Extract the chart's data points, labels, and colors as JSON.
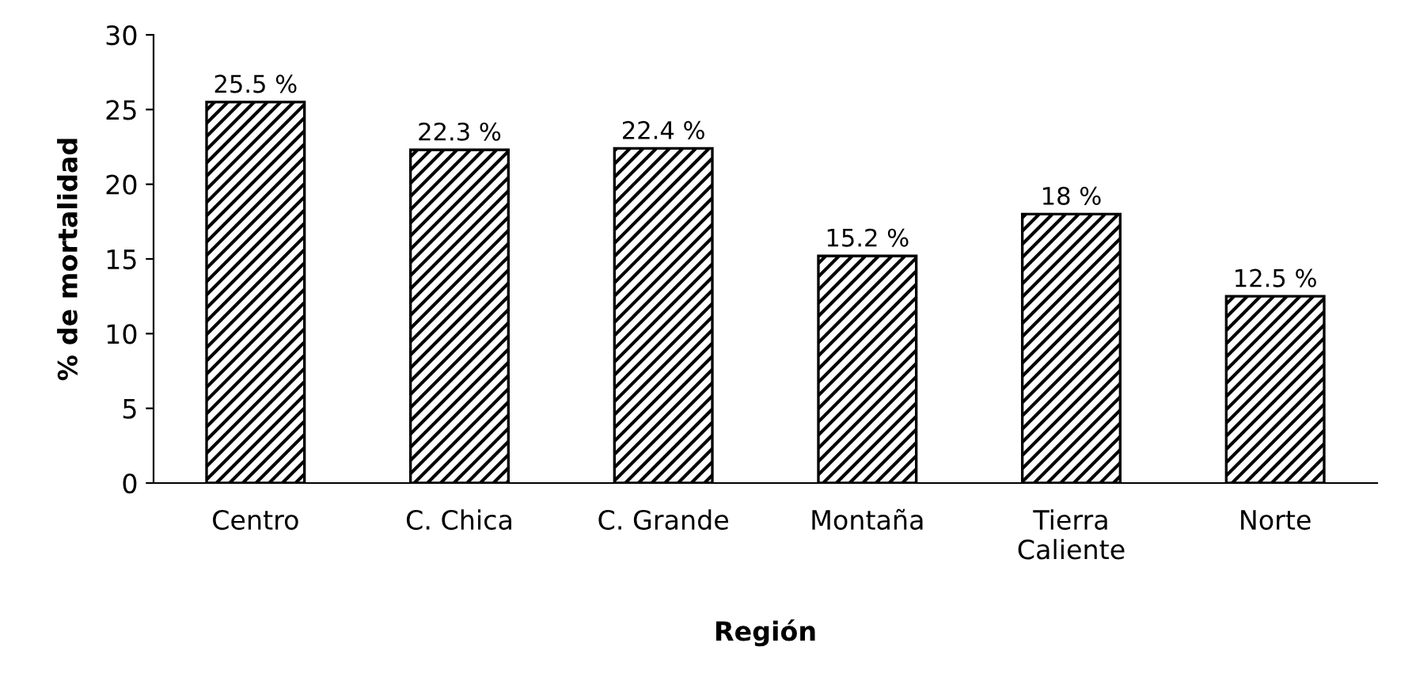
{
  "chart_data": {
    "type": "bar",
    "xlabel": "Región",
    "ylabel": "% de mortalidad",
    "categories": [
      "Centro",
      "C. Chica",
      "C. Grande",
      "Montaña",
      "Tierra\nCaliente",
      "Norte"
    ],
    "values": [
      25.5,
      22.3,
      22.4,
      15.2,
      18,
      12.5
    ],
    "value_labels": [
      "25.5 %",
      "22.3 %",
      "22.4 %",
      "15.2 %",
      "18 %",
      "12.5 %"
    ],
    "color": "#000000",
    "ylim": [
      0,
      30
    ],
    "yticks": [
      0,
      5,
      10,
      15,
      20,
      25,
      30
    ],
    "grid": false,
    "legend": false
  }
}
